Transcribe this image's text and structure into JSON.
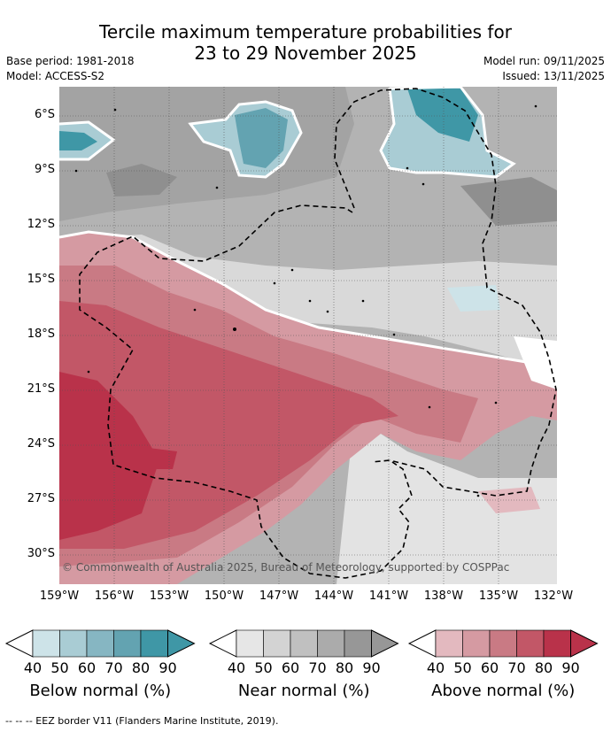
{
  "title": {
    "line1": "Tercile maximum temperature probabilities for",
    "line2": "23 to 29 November 2025"
  },
  "meta": {
    "base_period": "Base period: 1981-2018",
    "model": "Model: ACCESS-S2",
    "model_run": "Model run: 09/11/2025",
    "issued": "Issued: 13/11/2025"
  },
  "map": {
    "lat_labels": [
      "6°S",
      "9°S",
      "12°S",
      "15°S",
      "18°S",
      "21°S",
      "24°S",
      "27°S",
      "30°S"
    ],
    "lon_labels": [
      "159°W",
      "156°W",
      "153°W",
      "150°W",
      "147°W",
      "144°W",
      "141°W",
      "138°W",
      "135°W",
      "132°W"
    ],
    "copyright": "© Commonwealth of Australia 2025, Bureau of Meteorology, supported by COSPPac"
  },
  "colorbars": [
    {
      "title": "Below normal (%)",
      "ticks": [
        "40",
        "50",
        "60",
        "70",
        "80",
        "90"
      ],
      "colors": [
        "#cde3e8",
        "#a9ccd4",
        "#86b6c2",
        "#63a3b1",
        "#3f97a6"
      ]
    },
    {
      "title": "Near normal (%)",
      "ticks": [
        "40",
        "50",
        "60",
        "70",
        "80",
        "90"
      ],
      "colors": [
        "#e6e6e6",
        "#d3d3d3",
        "#c0c0c0",
        "#ababab",
        "#979797"
      ]
    },
    {
      "title": "Above normal (%)",
      "ticks": [
        "40",
        "50",
        "60",
        "70",
        "80",
        "90"
      ],
      "colors": [
        "#e3b9bf",
        "#d59aa2",
        "#c97a84",
        "#c25767",
        "#b9324a"
      ]
    }
  ],
  "footer": "--  --  -- EEZ border V11 (Flanders Marine Institute, 2019)."
}
